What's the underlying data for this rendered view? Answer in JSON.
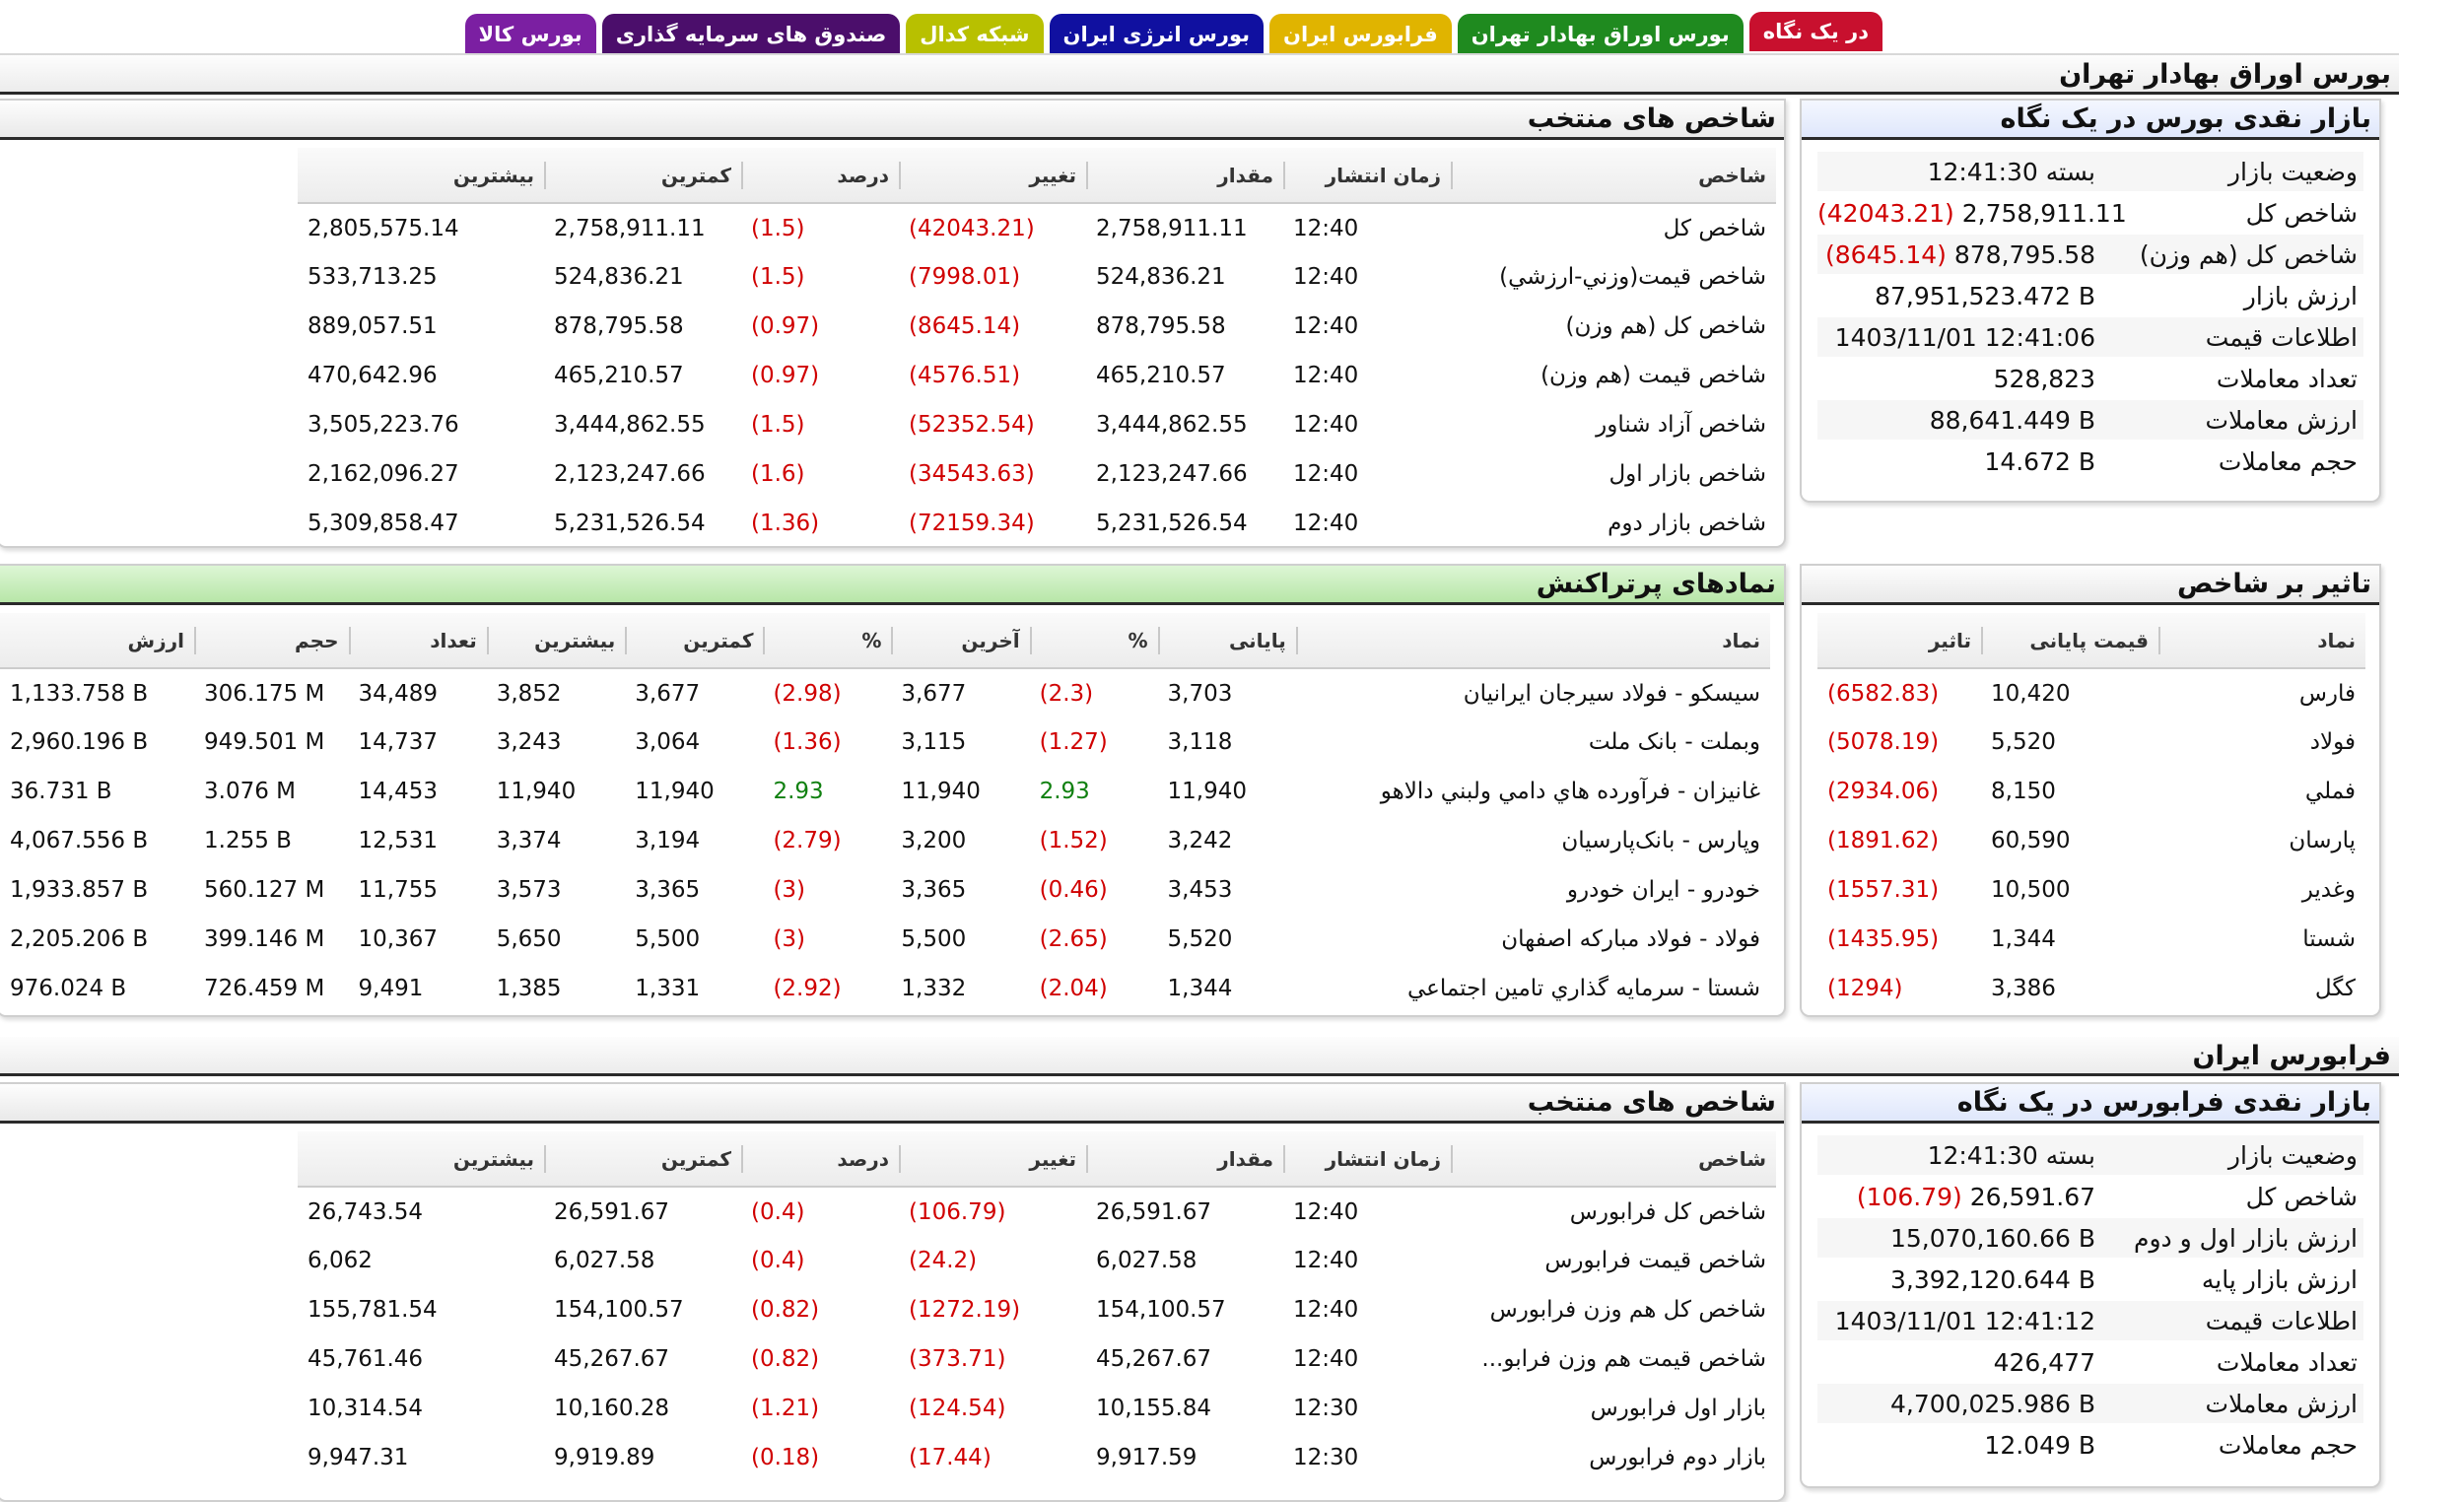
{
  "tabs": [
    {
      "label": "در یک نگاه",
      "color": "#c8102e",
      "active": true
    },
    {
      "label": "بورس اوراق بهادار تهران",
      "color": "#1f8a1f"
    },
    {
      "label": "فرابورس ایران",
      "color": "#e0b400"
    },
    {
      "label": "بورس انرژی ایران",
      "color": "#1010a0"
    },
    {
      "label": "شبکه کدال",
      "color": "#b8c000"
    },
    {
      "label": "صندوق های سرمایه گذاری",
      "color": "#4b0e6b"
    },
    {
      "label": "بورس کالا",
      "color": "#7b1fa2"
    }
  ],
  "tse": {
    "section_title": "بورس اوراق بهادار تهران",
    "glance": {
      "title": "بازار نقدی بورس در یک نگاه",
      "rows": [
        {
          "label": "وضعیت بازار",
          "value": "بسته 12:41:30"
        },
        {
          "label": "شاخص کل",
          "value": "2,758,911.11",
          "change": "(42043.21)"
        },
        {
          "label": "شاخص کل (هم وزن)",
          "value": "878,795.58",
          "change": "(8645.14)"
        },
        {
          "label": "ارزش بازار",
          "value": "87,951,523.472 B"
        },
        {
          "label": "اطلاعات قیمت",
          "value": "1403/11/01 12:41:06"
        },
        {
          "label": "تعداد معاملات",
          "value": "528,823"
        },
        {
          "label": "ارزش معاملات",
          "value": "88,641.449 B"
        },
        {
          "label": "حجم معاملات",
          "value": "14.672 B"
        }
      ]
    },
    "indices": {
      "title": "شاخص های منتخب",
      "headers": [
        "شاخص",
        "زمان انتشار",
        "مقدار",
        "تغییر",
        "درصد",
        "کمترین",
        "بیشترین"
      ],
      "rows": [
        [
          "شاخص کل",
          "12:40",
          "2,758,911.11",
          "(42043.21)",
          "(1.5)",
          "2,758,911.11",
          "2,805,575.14"
        ],
        [
          "شاخص قيمت(وزني-ارزشي)",
          "12:40",
          "524,836.21",
          "(7998.01)",
          "(1.5)",
          "524,836.21",
          "533,713.25"
        ],
        [
          "شاخص کل (هم وزن)",
          "12:40",
          "878,795.58",
          "(8645.14)",
          "(0.97)",
          "878,795.58",
          "889,057.51"
        ],
        [
          "شاخص قیمت (هم وزن)",
          "12:40",
          "465,210.57",
          "(4576.51)",
          "(0.97)",
          "465,210.57",
          "470,642.96"
        ],
        [
          "شاخص آزاد شناور",
          "12:40",
          "3,444,862.55",
          "(52352.54)",
          "(1.5)",
          "3,444,862.55",
          "3,505,223.76"
        ],
        [
          "شاخص بازار اول",
          "12:40",
          "2,123,247.66",
          "(34543.63)",
          "(1.6)",
          "2,123,247.66",
          "2,162,096.27"
        ],
        [
          "شاخص بازار دوم",
          "12:40",
          "5,231,526.54",
          "(72159.34)",
          "(1.36)",
          "5,231,526.54",
          "5,309,858.47"
        ]
      ]
    },
    "impact": {
      "title": "تاثیر بر شاخص",
      "headers": [
        "نماد",
        "قیمت پایانی",
        "تاثیر"
      ],
      "rows": [
        [
          "فارس",
          "10,420",
          "(6582.83)"
        ],
        [
          "فولاد",
          "5,520",
          "(5078.19)"
        ],
        [
          "فملي",
          "8,150",
          "(2934.06)"
        ],
        [
          "پارسان",
          "60,590",
          "(1891.62)"
        ],
        [
          "وغدير",
          "10,500",
          "(1557.31)"
        ],
        [
          "شستا",
          "1,344",
          "(1435.95)"
        ],
        [
          "کگل",
          "3,386",
          "(1294)"
        ]
      ]
    },
    "active": {
      "title": "نمادهای پرتراکنش",
      "headers": [
        "نماد",
        "پایانی",
        "%",
        "آخرین",
        "%",
        "کمترین",
        "بیشترین",
        "تعداد",
        "حجم",
        "ارزش"
      ],
      "rows": [
        [
          "سيسکو - فولاد سيرجان ايرانيان",
          "3,703",
          "(2.3)",
          "3,677",
          "(2.98)",
          "3,677",
          "3,852",
          "34,489",
          "306.175 M",
          "1,133.758 B"
        ],
        [
          "وبملت - بانک ملت",
          "3,118",
          "(1.27)",
          "3,115",
          "(1.36)",
          "3,064",
          "3,243",
          "14,737",
          "949.501 M",
          "2,960.196 B"
        ],
        [
          "غانيزان - فرآورده هاي دامي ولبني دالاهو",
          "11,940",
          "2.93",
          "11,940",
          "2.93",
          "11,940",
          "11,940",
          "14,453",
          "3.076 M",
          "36.731 B"
        ],
        [
          "وپارس - بانک‌پارسيان",
          "3,242",
          "(1.52)",
          "3,200",
          "(2.79)",
          "3,194",
          "3,374",
          "12,531",
          "1.255 B",
          "4,067.556 B"
        ],
        [
          "خودرو - ايران‌ خودرو",
          "3,453",
          "(0.46)",
          "3,365",
          "(3)",
          "3,365",
          "3,573",
          "11,755",
          "560.127 M",
          "1,933.857 B"
        ],
        [
          "فولاد - فولاد مبارکه اصفهان",
          "5,520",
          "(2.65)",
          "5,500",
          "(3)",
          "5,500",
          "5,650",
          "10,367",
          "399.146 M",
          "2,205.206 B"
        ],
        [
          "شستا - سرمايه گذاري تامين اجتماعي",
          "1,344",
          "(2.04)",
          "1,332",
          "(2.92)",
          "1,331",
          "1,385",
          "9,491",
          "726.459 M",
          "976.024 B"
        ]
      ]
    }
  },
  "ifb": {
    "section_title": "فرابورس ایران",
    "glance": {
      "title": "بازار نقدی فرابورس در یک نگاه",
      "rows": [
        {
          "label": "وضعیت بازار",
          "value": "بسته 12:41:30"
        },
        {
          "label": "شاخص کل",
          "value": "26,591.67",
          "change": "(106.79)"
        },
        {
          "label": "ارزش بازار اول و دوم",
          "value": "15,070,160.66 B"
        },
        {
          "label": "ارزش بازار پایه",
          "value": "3,392,120.644 B"
        },
        {
          "label": "اطلاعات قیمت",
          "value": "1403/11/01 12:41:12"
        },
        {
          "label": "تعداد معاملات",
          "value": "426,477"
        },
        {
          "label": "ارزش معاملات",
          "value": "4,700,025.986 B"
        },
        {
          "label": "حجم معاملات",
          "value": "12.049 B"
        }
      ]
    },
    "indices": {
      "title": "شاخص های منتخب",
      "headers": [
        "شاخص",
        "زمان انتشار",
        "مقدار",
        "تغییر",
        "درصد",
        "کمترین",
        "بیشترین"
      ],
      "rows": [
        [
          "شاخص کل فرابورس",
          "12:40",
          "26,591.67",
          "(106.79)",
          "(0.4)",
          "26,591.67",
          "26,743.54"
        ],
        [
          "شاخص قيمت فرابورس",
          "12:40",
          "6,027.58",
          "(24.2)",
          "(0.4)",
          "6,027.58",
          "6,062"
        ],
        [
          "شاخص کل هم وزن فرابورس",
          "12:40",
          "154,100.57",
          "(1272.19)",
          "(0.82)",
          "154,100.57",
          "155,781.54"
        ],
        [
          "شاخص قيمت هم وزن فرابو...",
          "12:40",
          "45,267.67",
          "(373.71)",
          "(0.82)",
          "45,267.67",
          "45,761.46"
        ],
        [
          "بازار اول فرابورس",
          "12:30",
          "10,155.84",
          "(124.54)",
          "(1.21)",
          "10,160.28",
          "10,314.54"
        ],
        [
          "بازار دوم فرابورس",
          "12:30",
          "9,917.59",
          "(17.44)",
          "(0.18)",
          "9,919.89",
          "9,947.31"
        ]
      ]
    }
  }
}
